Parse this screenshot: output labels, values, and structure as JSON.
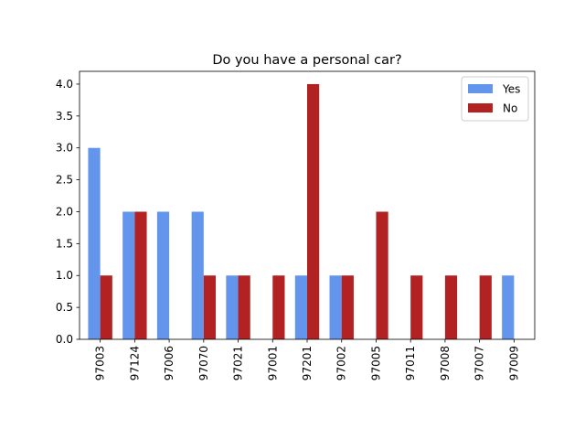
{
  "chart_data": {
    "type": "bar",
    "title": "Do you have a personal car?",
    "xlabel": "",
    "ylabel": "",
    "categories": [
      "97003",
      "97124",
      "97006",
      "97070",
      "97021",
      "97001",
      "97201",
      "97002",
      "97005",
      "97011",
      "97008",
      "97007",
      "97009"
    ],
    "series": [
      {
        "name": "Yes",
        "color": "#6495ed",
        "values": [
          3,
          2,
          2,
          2,
          1,
          0,
          1,
          1,
          0,
          0,
          0,
          0,
          1
        ]
      },
      {
        "name": "No",
        "color": "#b22222",
        "values": [
          1,
          2,
          0,
          1,
          1,
          1,
          4,
          1,
          2,
          1,
          1,
          1,
          0
        ]
      }
    ],
    "ylim": [
      0,
      4.2
    ],
    "yticks": [
      "0.0",
      "0.5",
      "1.0",
      "1.5",
      "2.0",
      "2.5",
      "3.0",
      "3.5",
      "4.0"
    ],
    "legend_position": "top-right",
    "grid": false
  }
}
